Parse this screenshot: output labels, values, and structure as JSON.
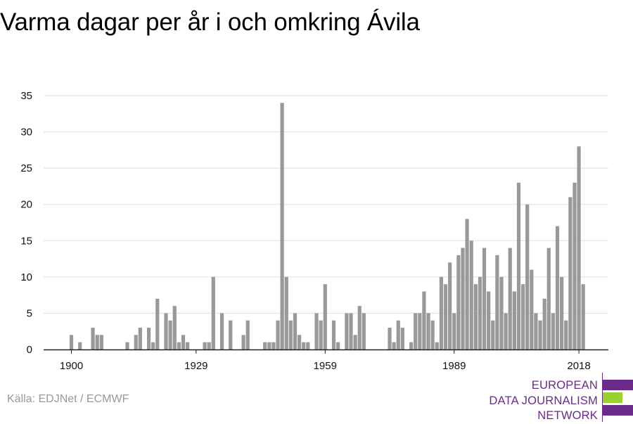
{
  "title": "Varma dagar per år i och omkring Ávila",
  "source": "Källa: EDJNet / ECMWF",
  "logo": {
    "lines": [
      "EUROPEAN",
      "DATA JOURNALISM",
      "NETWORK"
    ],
    "colors": [
      "#6b2b8a",
      "#9bd12f",
      "#6b2b8a"
    ]
  },
  "chart_data": {
    "type": "bar",
    "title": "Varma dagar per år i och omkring Ávila",
    "xlabel": "",
    "ylabel": "",
    "ylim": [
      0,
      35
    ],
    "y_ticks": [
      0,
      5,
      10,
      15,
      20,
      25,
      30,
      35
    ],
    "x_ticks": [
      1900,
      1929,
      1959,
      1989,
      2018
    ],
    "grid": true,
    "bar_color": "#999999",
    "x": [
      1900,
      1901,
      1902,
      1903,
      1904,
      1905,
      1906,
      1907,
      1908,
      1909,
      1910,
      1911,
      1912,
      1913,
      1914,
      1915,
      1916,
      1917,
      1918,
      1919,
      1920,
      1921,
      1922,
      1923,
      1924,
      1925,
      1926,
      1927,
      1928,
      1929,
      1930,
      1931,
      1932,
      1933,
      1934,
      1935,
      1936,
      1937,
      1938,
      1939,
      1940,
      1941,
      1942,
      1943,
      1944,
      1945,
      1946,
      1947,
      1948,
      1949,
      1950,
      1951,
      1952,
      1953,
      1954,
      1955,
      1956,
      1957,
      1958,
      1959,
      1960,
      1961,
      1962,
      1963,
      1964,
      1965,
      1966,
      1967,
      1968,
      1969,
      1970,
      1971,
      1972,
      1973,
      1974,
      1975,
      1976,
      1977,
      1978,
      1979,
      1980,
      1981,
      1982,
      1983,
      1984,
      1985,
      1986,
      1987,
      1988,
      1989,
      1990,
      1991,
      1992,
      1993,
      1994,
      1995,
      1996,
      1997,
      1998,
      1999,
      2000,
      2001,
      2002,
      2003,
      2004,
      2005,
      2006,
      2007,
      2008,
      2009,
      2010,
      2011,
      2012,
      2013,
      2014,
      2015,
      2016,
      2017,
      2018,
      2019
    ],
    "values": [
      2,
      0,
      1,
      0,
      0,
      3,
      2,
      2,
      0,
      0,
      0,
      0,
      0,
      1,
      0,
      2,
      3,
      0,
      3,
      1,
      7,
      0,
      5,
      4,
      6,
      1,
      2,
      1,
      0,
      0,
      0,
      1,
      1,
      10,
      0,
      5,
      0,
      4,
      0,
      0,
      2,
      4,
      0,
      0,
      0,
      1,
      1,
      1,
      4,
      34,
      10,
      4,
      5,
      2,
      1,
      1,
      0,
      5,
      4,
      9,
      0,
      4,
      1,
      0,
      5,
      5,
      2,
      6,
      5,
      0,
      0,
      0,
      0,
      0,
      3,
      1,
      4,
      3,
      0,
      1,
      5,
      5,
      8,
      5,
      4,
      1,
      10,
      9,
      12,
      5,
      13,
      14,
      18,
      15,
      9,
      10,
      14,
      8,
      4,
      13,
      10,
      5,
      14,
      8,
      23,
      9,
      20,
      11,
      5,
      4,
      7,
      14,
      5,
      17,
      10,
      4,
      21,
      23,
      28,
      9
    ]
  }
}
